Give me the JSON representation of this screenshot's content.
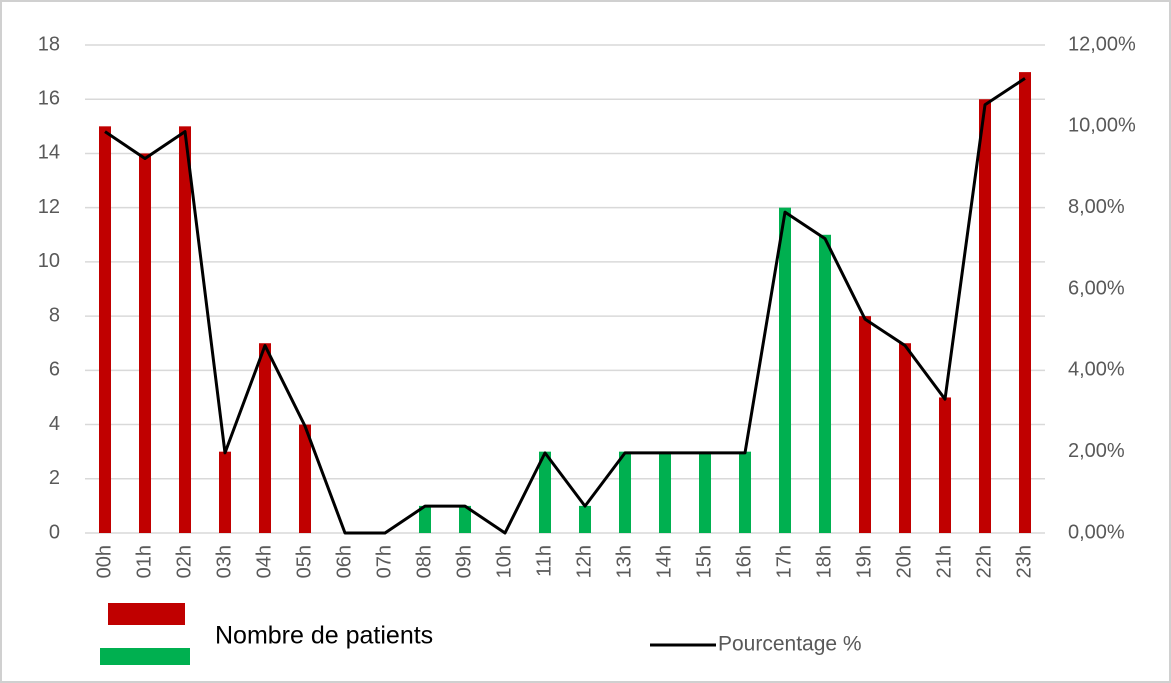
{
  "chart_data": {
    "type": "bar_line",
    "categories": [
      "00h",
      "01h",
      "02h",
      "03h",
      "04h",
      "05h",
      "06h",
      "07h",
      "08h",
      "09h",
      "10h",
      "11h",
      "12h",
      "13h",
      "14h",
      "15h",
      "16h",
      "17h",
      "18h",
      "19h",
      "20h",
      "21h",
      "22h",
      "23h"
    ],
    "series": [
      {
        "name": "Nombre de patients",
        "type": "bar",
        "colors": [
          "#c00000",
          "#c00000",
          "#c00000",
          "#c00000",
          "#c00000",
          "#c00000",
          "#00b050",
          "#00b050",
          "#00b050",
          "#00b050",
          "#00b050",
          "#00b050",
          "#00b050",
          "#00b050",
          "#00b050",
          "#00b050",
          "#00b050",
          "#00b050",
          "#00b050",
          "#c00000",
          "#c00000",
          "#c00000",
          "#c00000",
          "#c00000"
        ],
        "values": [
          15,
          14,
          15,
          3,
          7,
          4,
          0,
          0,
          1,
          1,
          0,
          3,
          1,
          3,
          3,
          3,
          3,
          12,
          11,
          8,
          7,
          5,
          16,
          17
        ]
      },
      {
        "name": "Pourcentage %",
        "type": "line",
        "axis": "y2",
        "color": "#000000",
        "values": [
          9.87,
          9.21,
          9.87,
          1.97,
          4.61,
          2.63,
          0,
          0,
          0.66,
          0.66,
          0,
          1.97,
          0.66,
          1.97,
          1.97,
          1.97,
          1.97,
          7.89,
          7.24,
          5.26,
          4.61,
          3.29,
          10.53,
          11.18
        ]
      }
    ],
    "ylim": [
      0,
      18
    ],
    "yticks": [
      0,
      2,
      4,
      6,
      8,
      10,
      12,
      14,
      16,
      18
    ],
    "y2lim": [
      0,
      12
    ],
    "y2ticks": [
      {
        "value": 0,
        "label": "0,00%"
      },
      {
        "value": 2,
        "label": "2,00%"
      },
      {
        "value": 4,
        "label": "4,00%"
      },
      {
        "value": 6,
        "label": "6,00%"
      },
      {
        "value": 8,
        "label": "8,00%"
      },
      {
        "value": 10,
        "label": "10,00%"
      },
      {
        "value": 12,
        "label": "12,00%"
      }
    ],
    "grid": true
  }
}
